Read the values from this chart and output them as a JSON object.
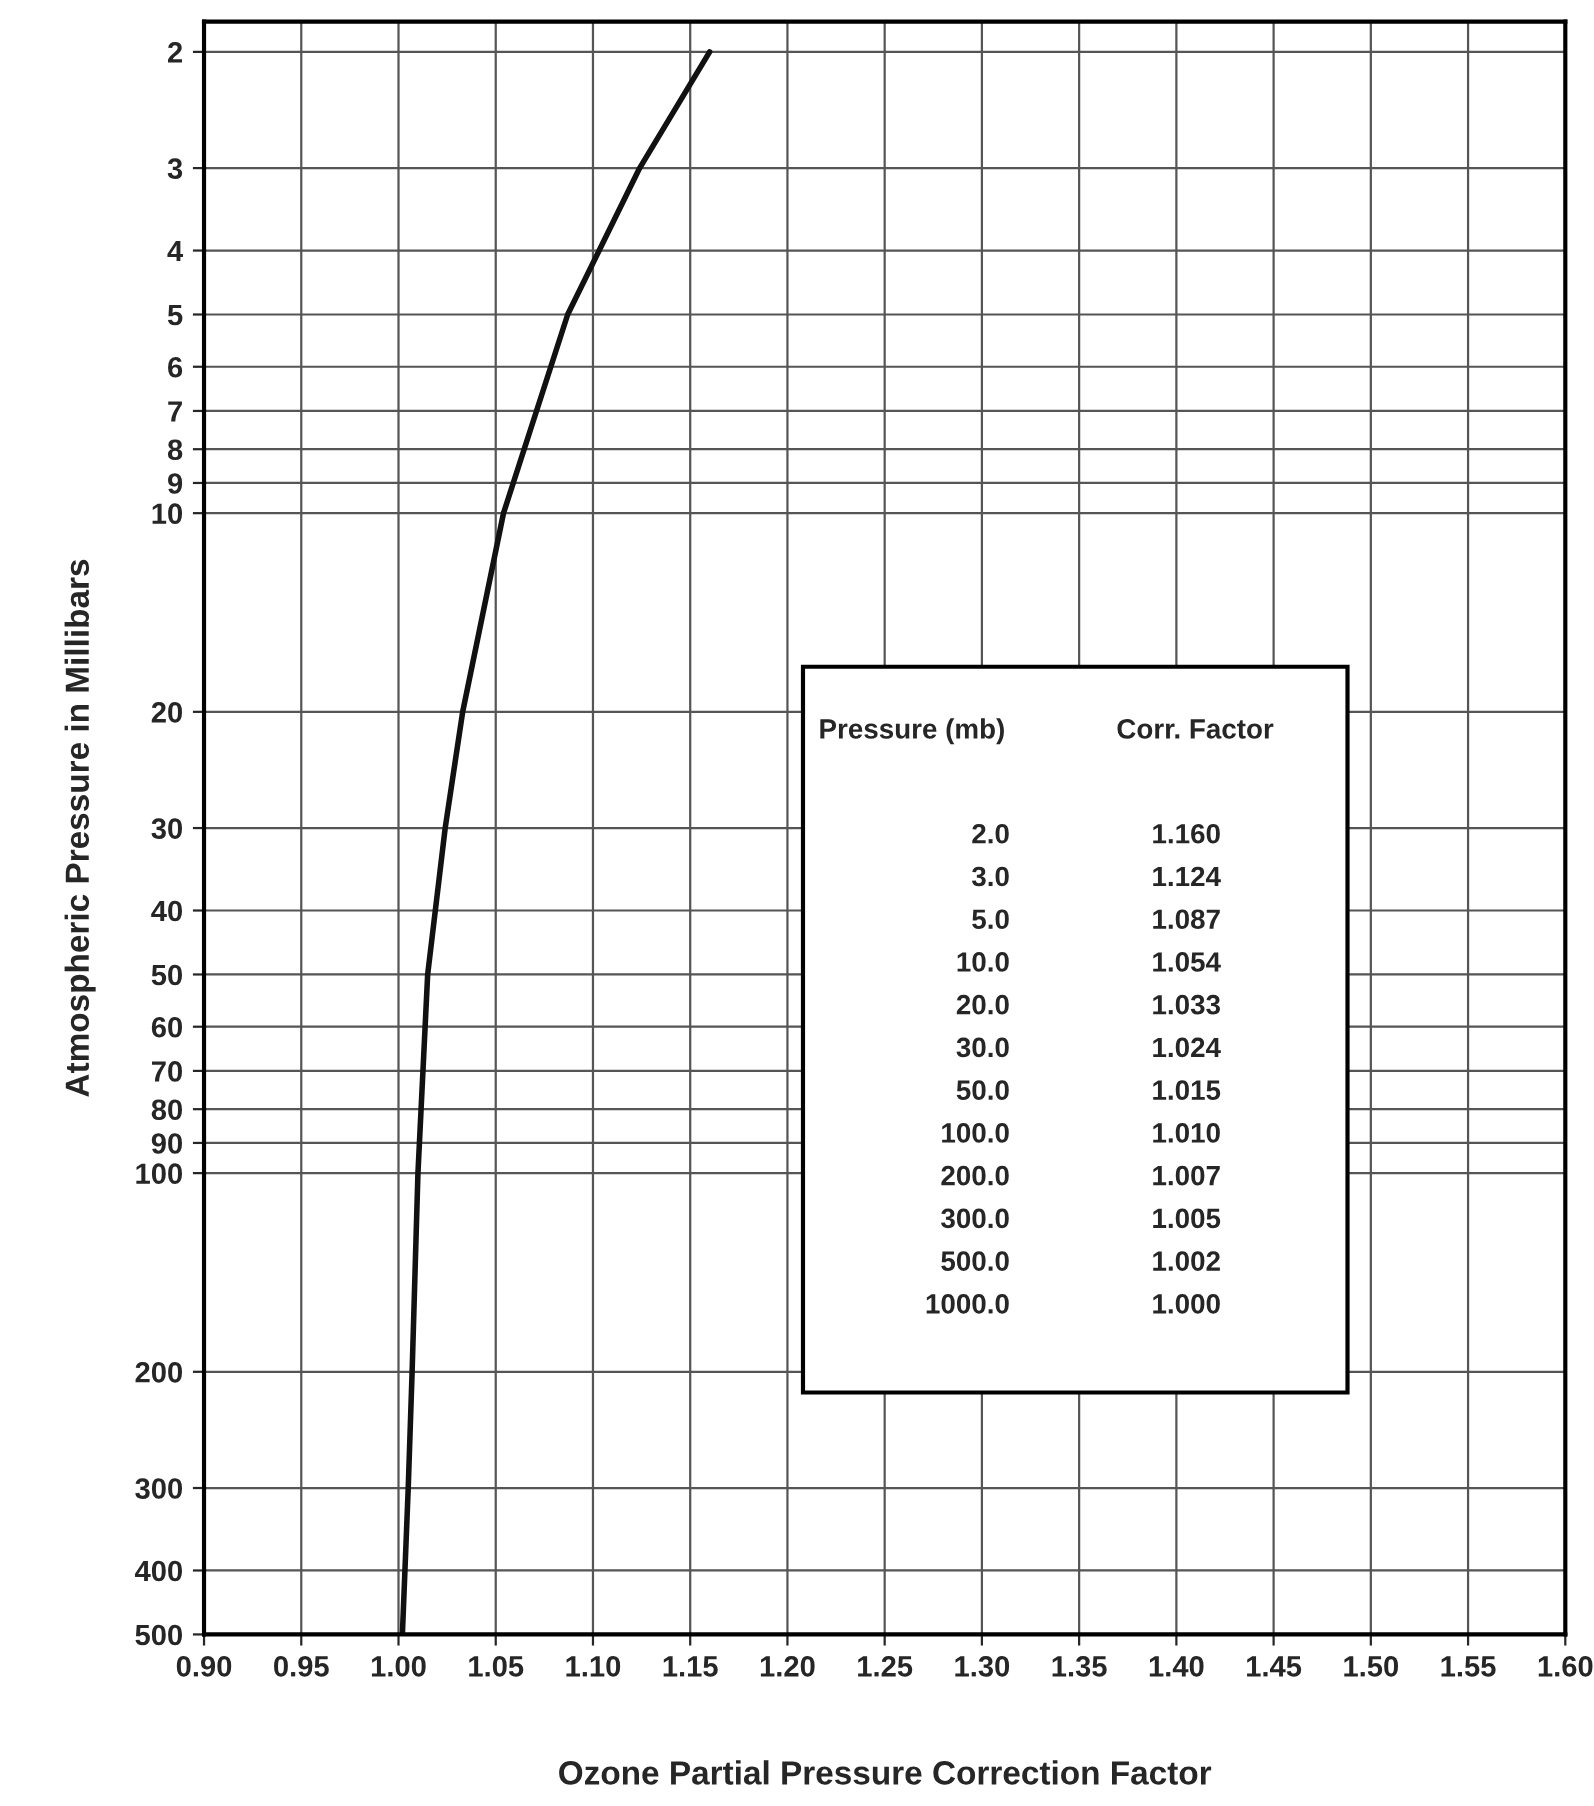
{
  "chart_data": {
    "type": "line",
    "xlabel": "Ozone Partial Pressure Correction Factor",
    "ylabel": "Atmospheric Pressure in Millibars",
    "series": [
      {
        "color": "#111111",
        "x": [
          1.16,
          1.124,
          1.087,
          1.054,
          1.033,
          1.024,
          1.015,
          1.01,
          1.007,
          1.005,
          1.002
        ],
        "values": [
          2,
          3,
          5,
          10,
          20,
          30,
          50,
          100,
          200,
          300,
          500
        ]
      }
    ],
    "log": "y",
    "xlim": [
      0.9,
      1.6
    ],
    "ylim": [
      500,
      1.8
    ],
    "xticks": [
      {
        "value": 0.9,
        "label": "0.90"
      },
      0.95,
      {
        "value": 1.0,
        "label": "1.00"
      },
      1.05,
      {
        "value": 1.1,
        "label": "1.10"
      },
      1.15,
      {
        "value": 1.2,
        "label": "1.20"
      },
      1.25,
      {
        "value": 1.3,
        "label": "1.30"
      },
      1.35,
      {
        "value": 1.4,
        "label": "1.40"
      },
      1.45,
      {
        "value": 1.5,
        "label": "1.50"
      },
      1.55,
      {
        "value": 1.6,
        "label": "1.60"
      }
    ],
    "yticks": [
      2,
      3,
      4,
      5,
      6,
      7,
      8,
      9,
      10,
      20,
      30,
      40,
      50,
      60,
      70,
      80,
      90,
      100,
      200,
      300,
      400,
      500
    ],
    "grid": true,
    "marker": "none",
    "line_style": "solid",
    "annotations": [
      "Pressure (mb)",
      "Corr. Factor",
      "2.0",
      "1.160",
      "3.0",
      "1.124",
      "5.0",
      "1.087",
      "10.0",
      "1.054",
      "20.0",
      "1.033",
      "30.0",
      "1.024",
      "50.0",
      "1.015",
      "100.0",
      "1.010",
      "200.0",
      "1.007",
      "300.0",
      "1.005",
      "500.0",
      "1.002",
      "1000.0",
      "1.000"
    ]
  }
}
